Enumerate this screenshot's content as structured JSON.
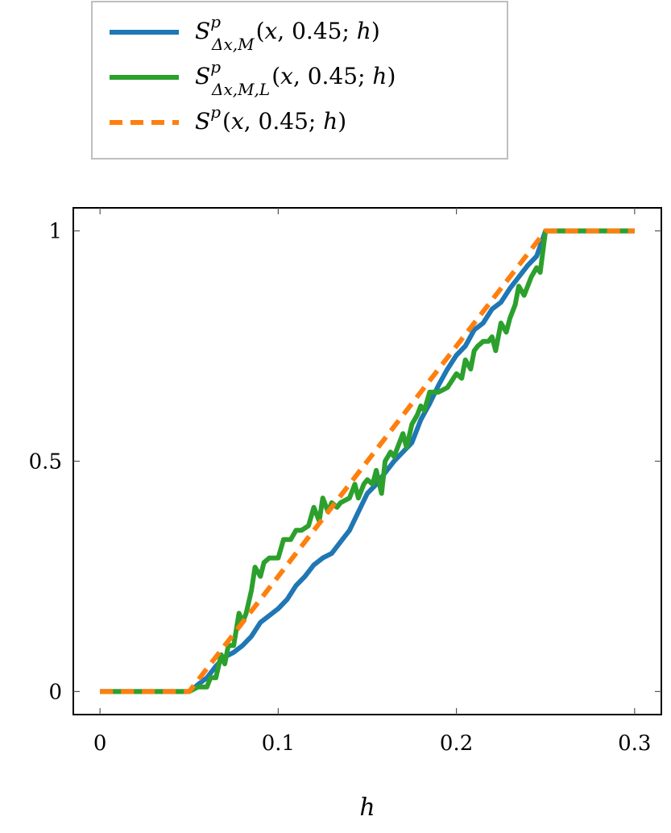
{
  "chart_data": {
    "type": "line",
    "xlabel": "h",
    "ylabel": "",
    "xlim": [
      -0.015,
      0.315
    ],
    "ylim": [
      -0.05,
      1.05
    ],
    "xticks": [
      0,
      0.1,
      0.2,
      0.3
    ],
    "xtick_labels": [
      "0",
      "0.1",
      "0.2",
      "0.3"
    ],
    "yticks": [
      0,
      0.5,
      1
    ],
    "ytick_labels": [
      "0",
      "0.5",
      "1"
    ],
    "grid": false,
    "legend_position": "top-center, above plot",
    "series": [
      {
        "name": "S^p_{Δx,M}(x, 0.45; h)",
        "legend": {
          "base": "S",
          "sup": "p",
          "sub": "Δx,M",
          "args_pre": "(",
          "args_x": "x",
          "args_mid": ", 0.45; ",
          "args_h": "h",
          "args_post": ")"
        },
        "color": "#1f77b4",
        "dash": "solid",
        "x": [
          0,
          0.03,
          0.05,
          0.052,
          0.055,
          0.06,
          0.065,
          0.07,
          0.075,
          0.08,
          0.085,
          0.09,
          0.095,
          0.1,
          0.105,
          0.11,
          0.115,
          0.12,
          0.125,
          0.13,
          0.135,
          0.14,
          0.145,
          0.15,
          0.155,
          0.16,
          0.165,
          0.17,
          0.175,
          0.18,
          0.185,
          0.19,
          0.195,
          0.2,
          0.205,
          0.21,
          0.215,
          0.22,
          0.225,
          0.23,
          0.235,
          0.24,
          0.245,
          0.25,
          0.255,
          0.27,
          0.3
        ],
        "y": [
          0,
          0,
          0,
          0.005,
          0.015,
          0.03,
          0.055,
          0.075,
          0.085,
          0.1,
          0.12,
          0.15,
          0.165,
          0.18,
          0.2,
          0.23,
          0.25,
          0.275,
          0.29,
          0.3,
          0.325,
          0.35,
          0.39,
          0.43,
          0.45,
          0.475,
          0.5,
          0.52,
          0.54,
          0.59,
          0.625,
          0.665,
          0.7,
          0.73,
          0.75,
          0.785,
          0.8,
          0.83,
          0.845,
          0.875,
          0.9,
          0.925,
          0.945,
          1.0,
          1.0,
          1.0,
          1.0
        ]
      },
      {
        "name": "S^p_{Δx,M,L}(x, 0.45; h)",
        "legend": {
          "base": "S",
          "sup": "p",
          "sub": "Δx,M,L",
          "args_pre": "(",
          "args_x": "x",
          "args_mid": ", 0.45; ",
          "args_h": "h",
          "args_post": ")"
        },
        "color": "#2ca02c",
        "dash": "solid",
        "x": [
          0,
          0.03,
          0.05,
          0.055,
          0.06,
          0.062,
          0.065,
          0.068,
          0.07,
          0.072,
          0.075,
          0.078,
          0.08,
          0.082,
          0.085,
          0.087,
          0.09,
          0.092,
          0.095,
          0.1,
          0.103,
          0.107,
          0.11,
          0.113,
          0.117,
          0.12,
          0.123,
          0.125,
          0.128,
          0.13,
          0.133,
          0.135,
          0.14,
          0.143,
          0.145,
          0.148,
          0.15,
          0.153,
          0.155,
          0.158,
          0.16,
          0.163,
          0.165,
          0.17,
          0.172,
          0.175,
          0.178,
          0.18,
          0.182,
          0.185,
          0.19,
          0.195,
          0.2,
          0.203,
          0.205,
          0.208,
          0.21,
          0.212,
          0.215,
          0.218,
          0.22,
          0.222,
          0.225,
          0.228,
          0.23,
          0.233,
          0.235,
          0.238,
          0.24,
          0.242,
          0.245,
          0.247,
          0.25,
          0.255,
          0.27,
          0.3
        ],
        "y": [
          0,
          0,
          0,
          0.01,
          0.01,
          0.03,
          0.03,
          0.08,
          0.06,
          0.1,
          0.1,
          0.17,
          0.15,
          0.17,
          0.22,
          0.27,
          0.25,
          0.28,
          0.29,
          0.29,
          0.33,
          0.33,
          0.35,
          0.35,
          0.36,
          0.4,
          0.37,
          0.42,
          0.39,
          0.41,
          0.4,
          0.41,
          0.42,
          0.45,
          0.42,
          0.45,
          0.46,
          0.45,
          0.48,
          0.43,
          0.5,
          0.52,
          0.51,
          0.56,
          0.53,
          0.58,
          0.6,
          0.62,
          0.61,
          0.65,
          0.65,
          0.66,
          0.69,
          0.68,
          0.72,
          0.7,
          0.74,
          0.75,
          0.76,
          0.76,
          0.77,
          0.74,
          0.8,
          0.78,
          0.81,
          0.84,
          0.88,
          0.86,
          0.88,
          0.9,
          0.92,
          0.91,
          1.0,
          1.0,
          1.0,
          1.0
        ]
      },
      {
        "name": "S^p(x, 0.45; h)",
        "legend": {
          "base": "S",
          "sup": "p",
          "sub": "",
          "args_pre": "(",
          "args_x": "x",
          "args_mid": ", 0.45; ",
          "args_h": "h",
          "args_post": ")"
        },
        "color": "#ff7f0e",
        "dash": "dashed",
        "x": [
          0,
          0.05,
          0.25,
          0.3
        ],
        "y": [
          0,
          0,
          1,
          1
        ]
      }
    ]
  }
}
